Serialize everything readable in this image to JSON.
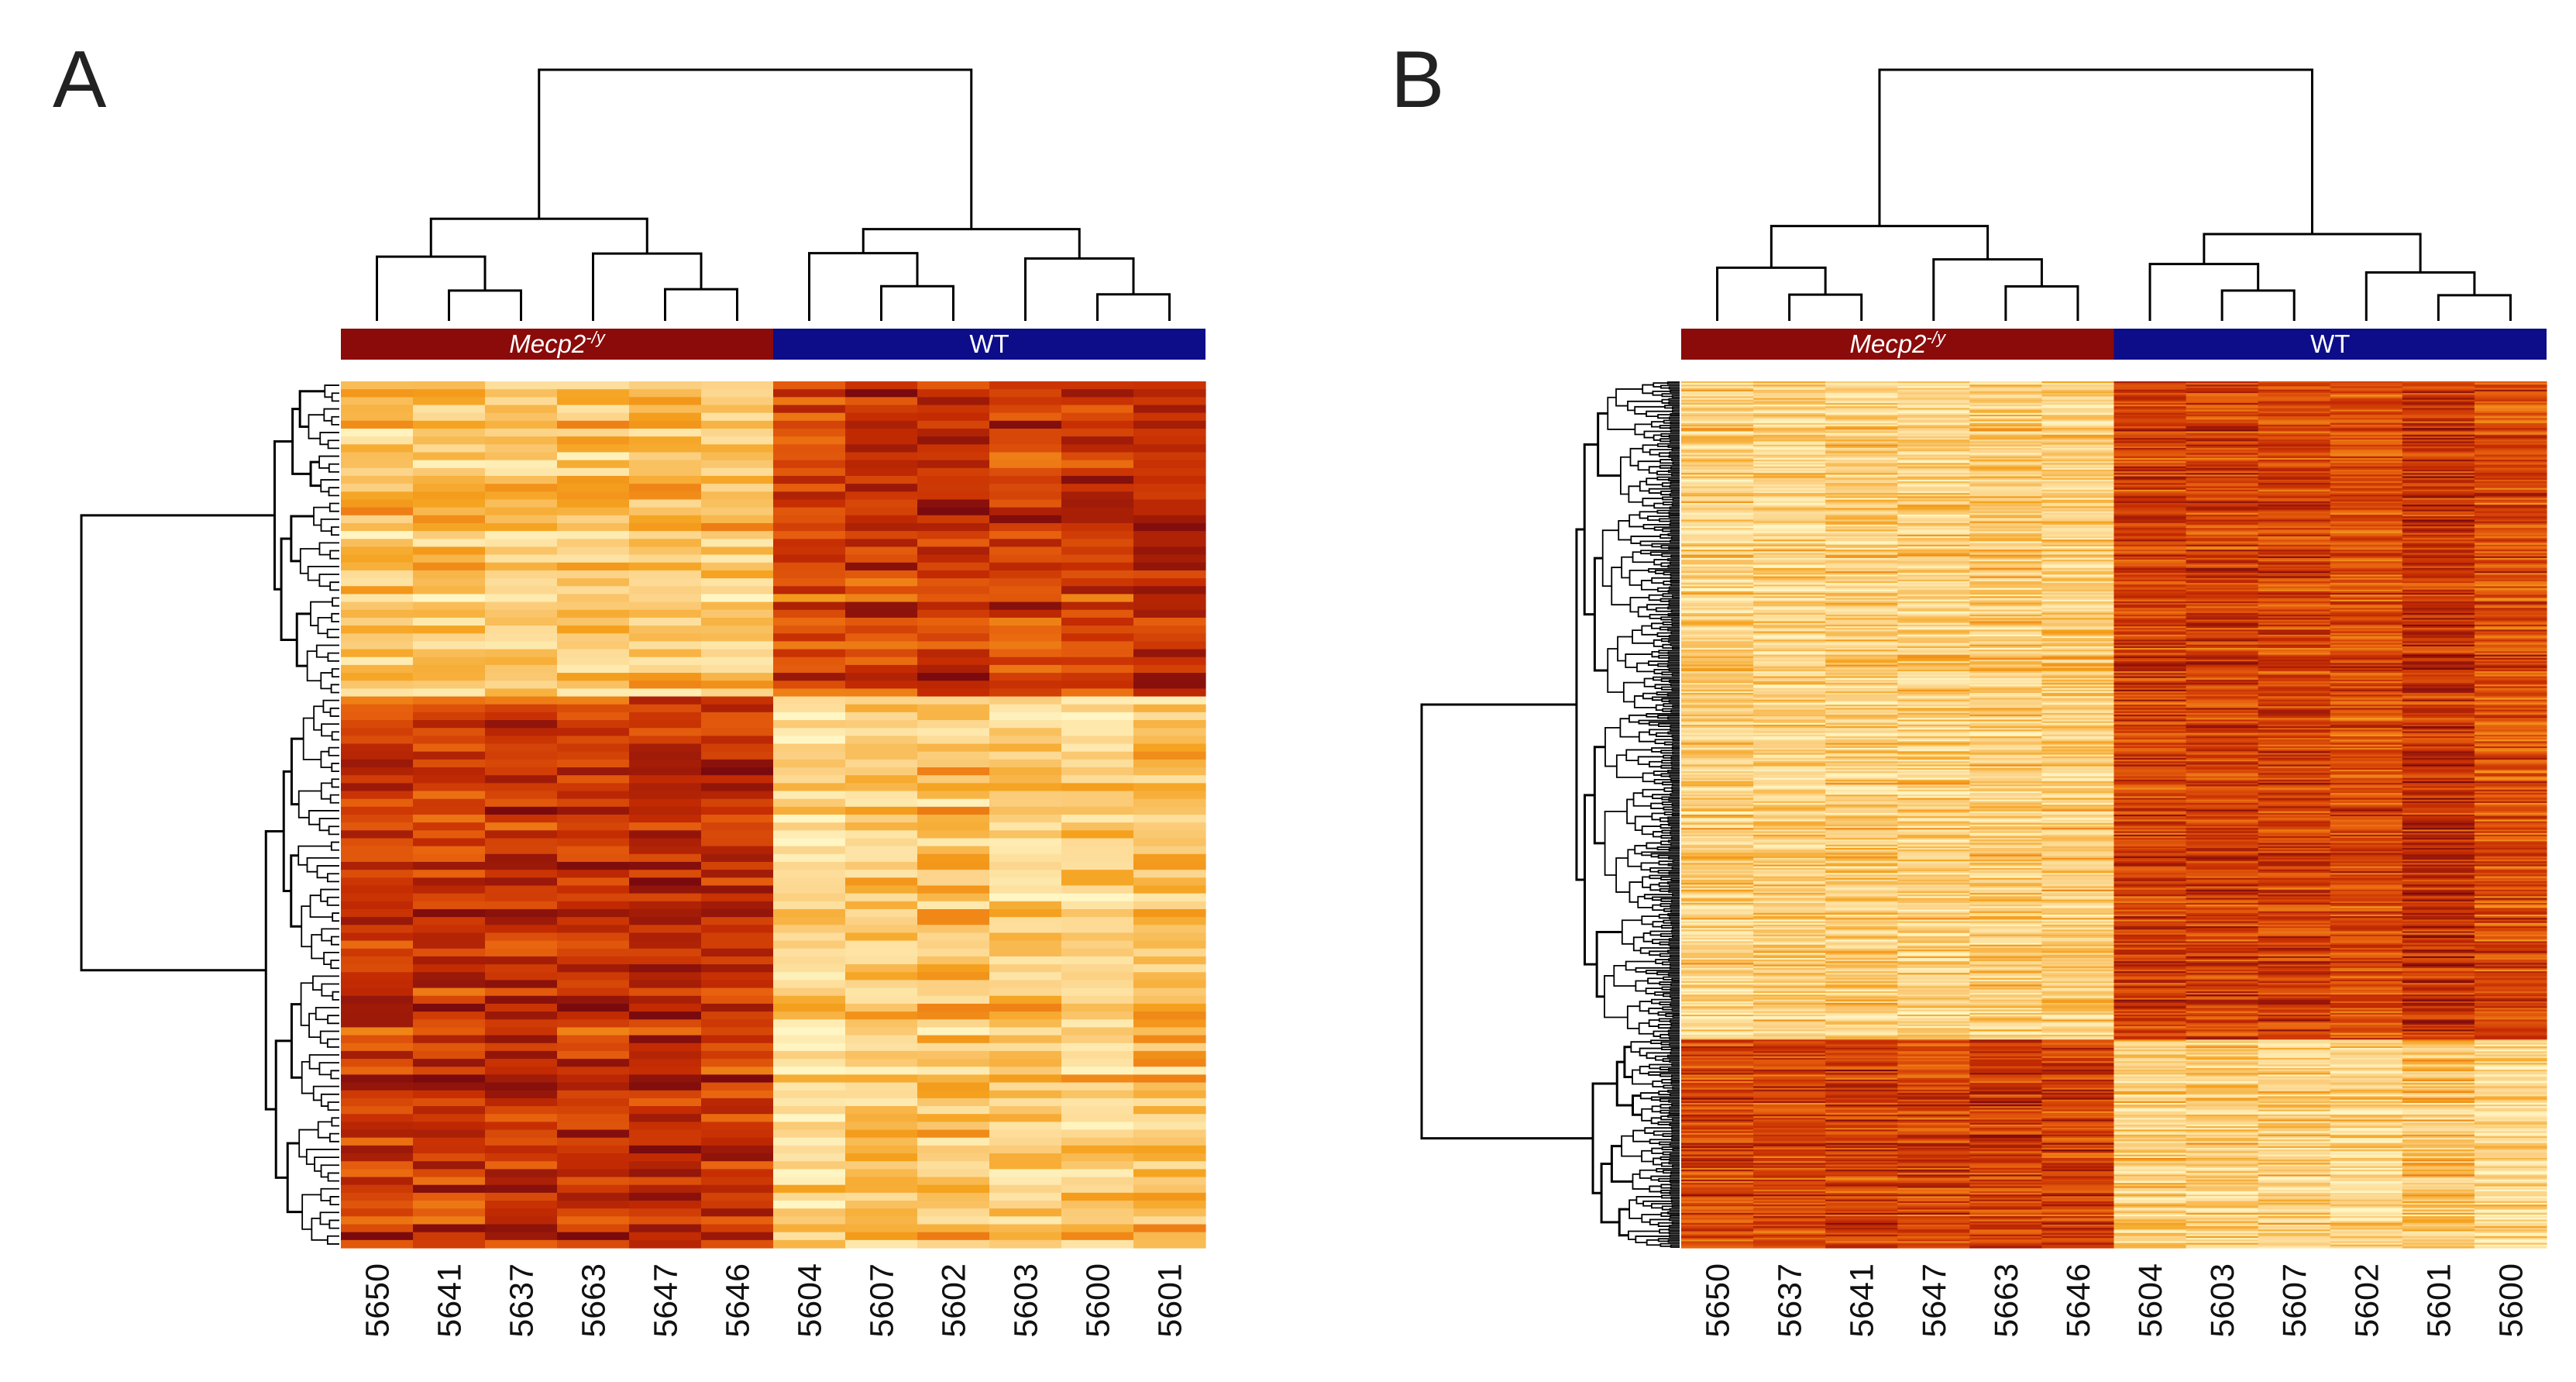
{
  "panels": [
    {
      "label": "A",
      "groups": [
        {
          "name": "Mecp2",
          "superscript": "-/y",
          "color": "#8b0a0a"
        },
        {
          "name": "WT",
          "color": "#0d0d8a"
        }
      ]
    },
    {
      "label": "B",
      "groups": [
        {
          "name": "Mecp2",
          "superscript": "-/y",
          "color": "#8b0a0a"
        },
        {
          "name": "WT",
          "color": "#0d0d8a"
        }
      ]
    }
  ],
  "chart_data": [
    {
      "type": "heatmap",
      "title": "A",
      "columns": [
        "5650",
        "5641",
        "5637",
        "5663",
        "5647",
        "5646",
        "5604",
        "5607",
        "5602",
        "5603",
        "5600",
        "5601"
      ],
      "column_groups": [
        "Mecp2-/y",
        "Mecp2-/y",
        "Mecp2-/y",
        "Mecp2-/y",
        "Mecp2-/y",
        "Mecp2-/y",
        "WT",
        "WT",
        "WT",
        "WT",
        "WT",
        "WT"
      ],
      "row_count": 110,
      "row_clusters": [
        {
          "fraction": 0.36,
          "Mecp2-/y": "low",
          "WT": "high"
        },
        {
          "fraction": 0.64,
          "Mecp2-/y": "high",
          "WT": "low"
        }
      ],
      "color_scale": [
        "#fff6c4",
        "#fcd48a",
        "#f5a21e",
        "#e8620e",
        "#c52c02",
        "#7a0a0e"
      ],
      "dendrograms": {
        "columns": true,
        "rows": true
      }
    },
    {
      "type": "heatmap",
      "title": "B",
      "columns": [
        "5650",
        "5637",
        "5641",
        "5647",
        "5663",
        "5646",
        "5604",
        "5603",
        "5607",
        "5602",
        "5601",
        "5600"
      ],
      "column_groups": [
        "Mecp2-/y",
        "Mecp2-/y",
        "Mecp2-/y",
        "Mecp2-/y",
        "Mecp2-/y",
        "Mecp2-/y",
        "WT",
        "WT",
        "WT",
        "WT",
        "WT",
        "WT"
      ],
      "row_count": 520,
      "row_clusters": [
        {
          "fraction": 0.76,
          "Mecp2-/y": "low",
          "WT": "high"
        },
        {
          "fraction": 0.24,
          "Mecp2-/y": "high",
          "WT": "low"
        }
      ],
      "color_scale": [
        "#fff6c4",
        "#fcd48a",
        "#f5a21e",
        "#e8620e",
        "#c52c02",
        "#7a0a0e"
      ],
      "dendrograms": {
        "columns": true,
        "rows": true
      }
    }
  ]
}
